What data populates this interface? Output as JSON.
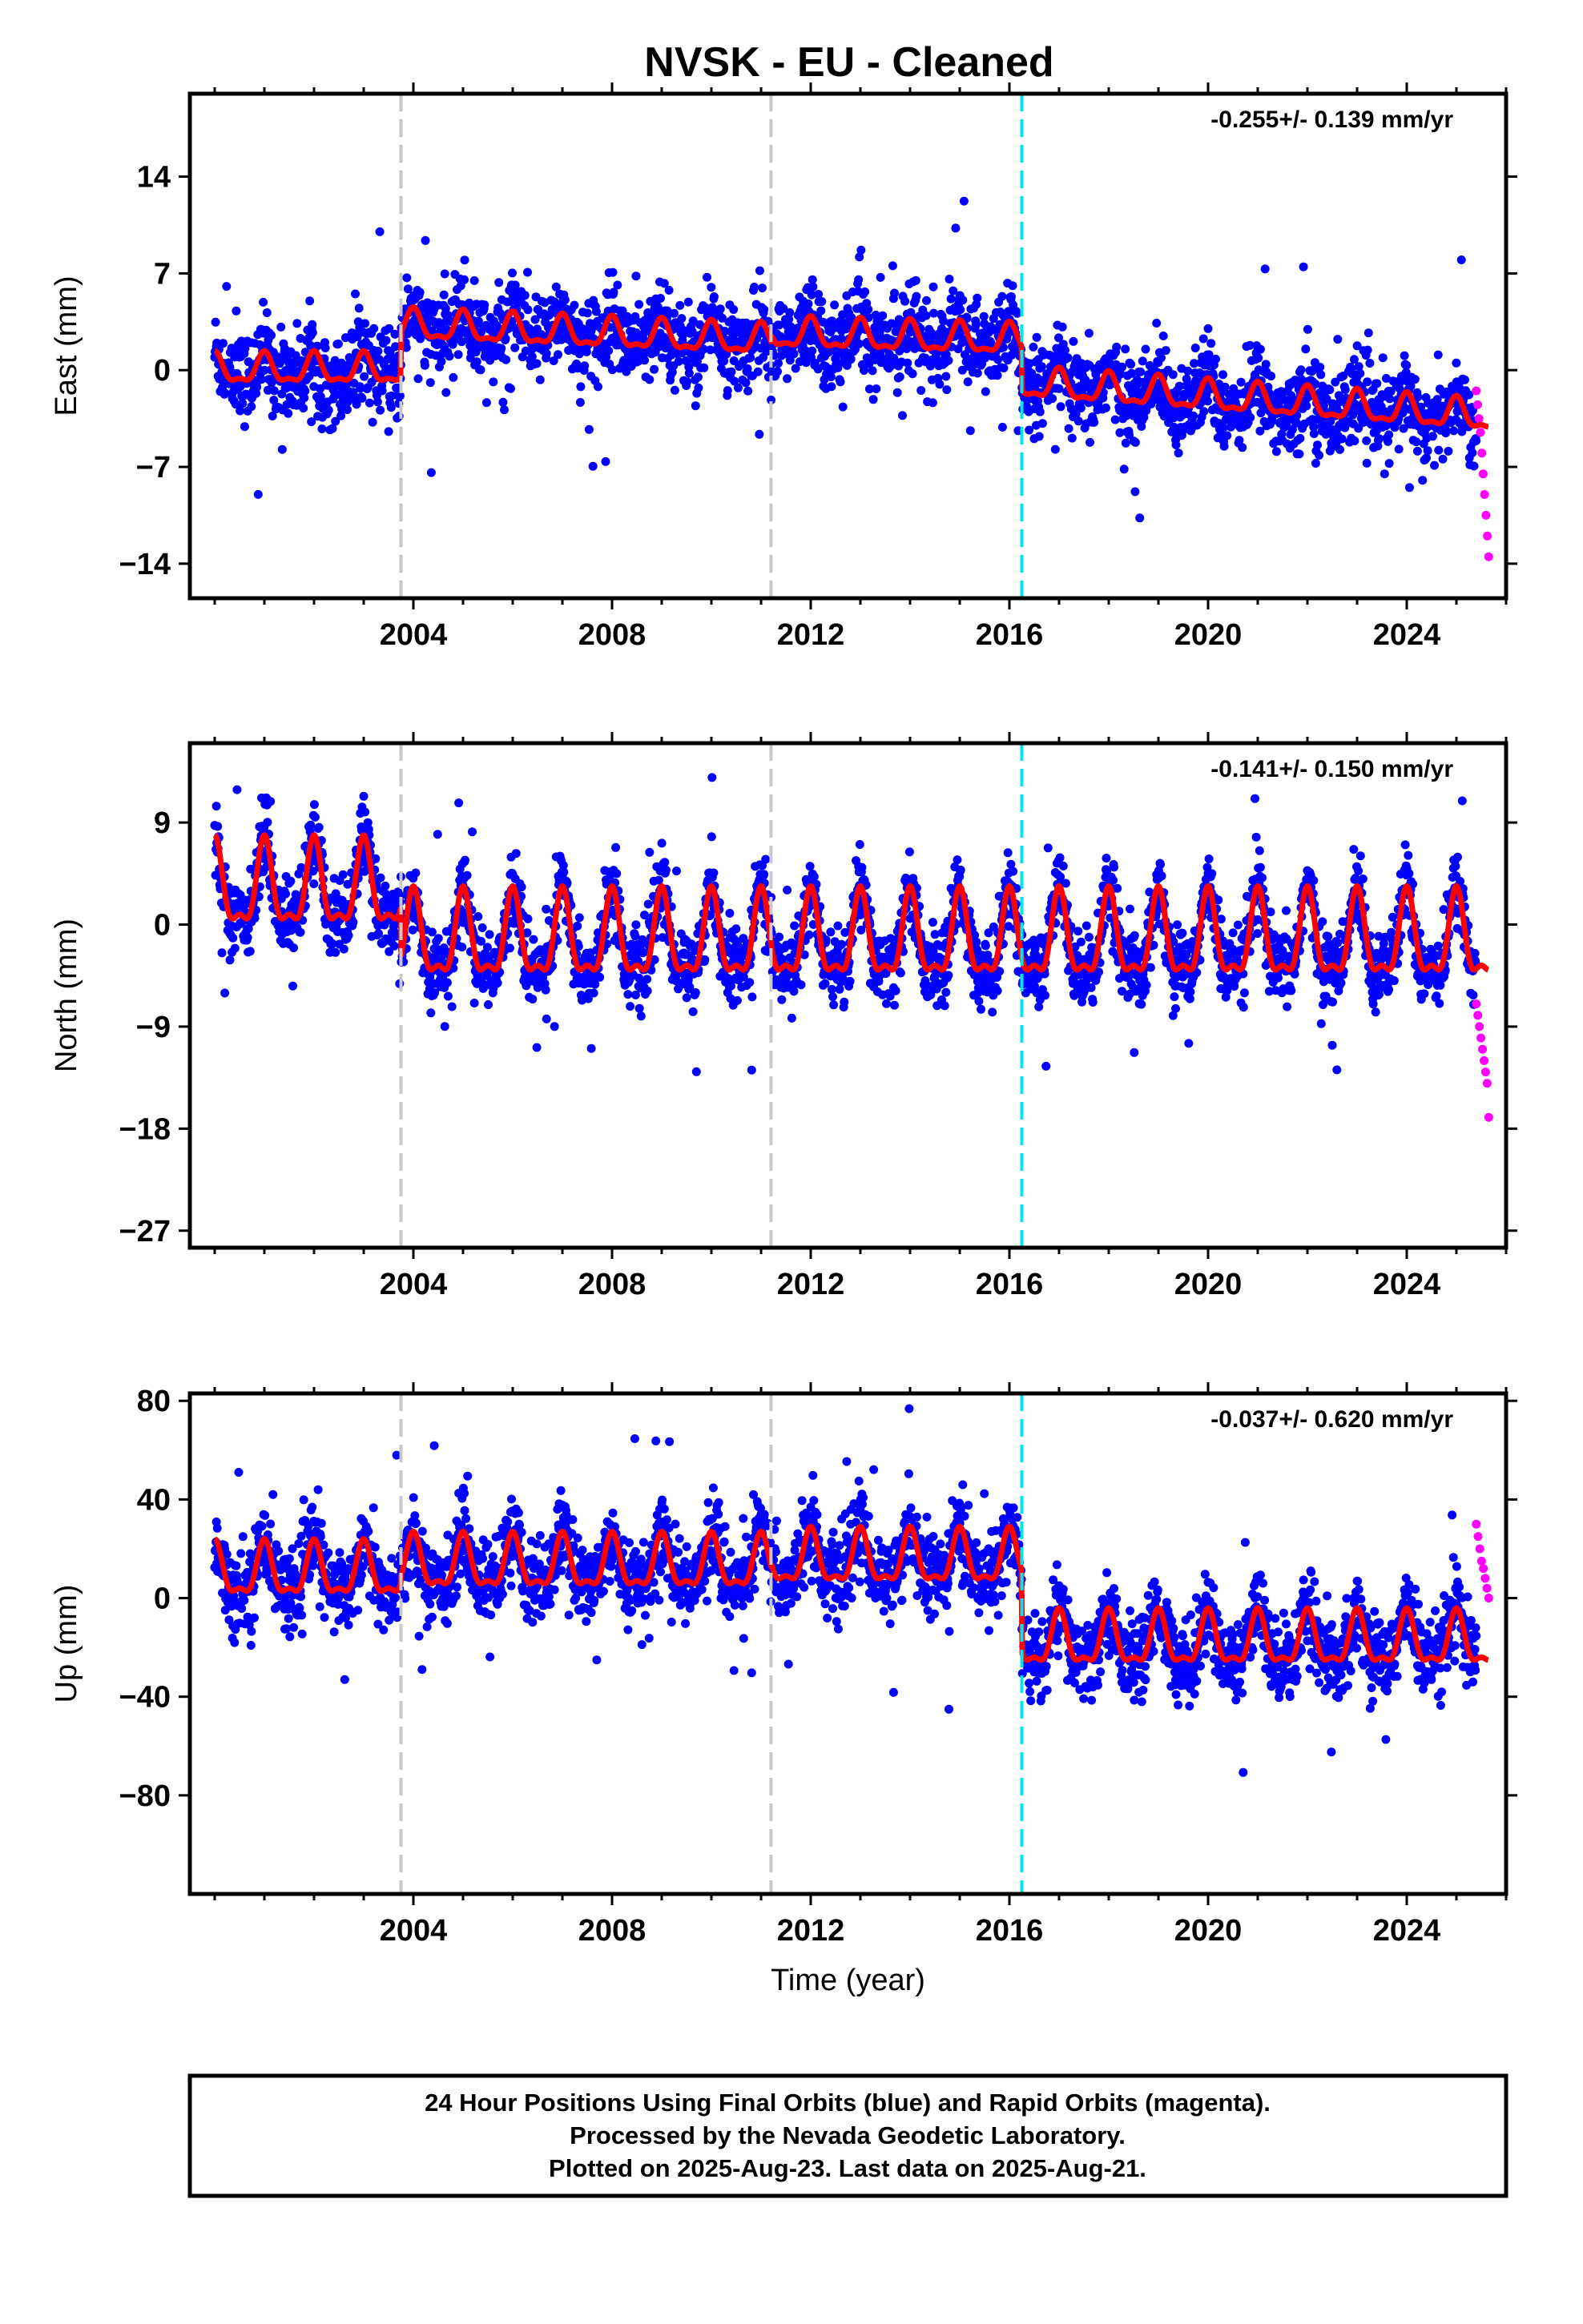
{
  "title": "NVSK  - EU - Cleaned",
  "footer": {
    "line1": "24 Hour Positions Using Final Orbits (blue) and Rapid Orbits (magenta).",
    "line2": "Processed by the Nevada Geodetic Laboratory.",
    "line3": "Plotted on 2025-Aug-23. Last data on 2025-Aug-21."
  },
  "colors": {
    "final_points": "#0000ff",
    "rapid_points": "#ff00ff",
    "model": "#ff0000",
    "equipment_change_line": "#c8c8c8",
    "other_offset_line": "#00e5ee"
  },
  "chart_data": [
    {
      "type": "scatter",
      "panel": "east",
      "ylabel": "East (mm)",
      "xlabel": "",
      "rate": "-0.255+/- 0.139 mm/yr",
      "xlim": [
        1999.5,
        2026.0
      ],
      "ylim": [
        -16.5,
        20.0
      ],
      "yticks": [
        14,
        7,
        0,
        -7,
        -14
      ],
      "ytick_labels": [
        "14",
        "7",
        "0",
        "−7",
        "−14"
      ],
      "xticks": [
        2004,
        2008,
        2012,
        2016,
        2020,
        2024
      ],
      "xtick_labels": [
        "2004",
        "2008",
        "2012",
        "2016",
        "2020",
        "2024"
      ],
      "gray_dashed_lines": [
        2003.75,
        2011.2
      ],
      "cyan_dashed_lines": [
        2016.25
      ],
      "model_segments": [
        {
          "start": 2000.0,
          "end": 2003.75,
          "offset": 0.0,
          "rate": 0.0,
          "amplitude": 1.0
        },
        {
          "start": 2003.75,
          "end": 2011.2,
          "offset": 3.2,
          "rate": -0.15,
          "amplitude": 1.0
        },
        {
          "start": 2011.2,
          "end": 2016.25,
          "offset": 2.6,
          "rate": -0.1,
          "amplitude": 1.0
        },
        {
          "start": 2016.25,
          "end": 2025.65,
          "offset": -1.0,
          "rate": -0.255,
          "amplitude": 1.0
        }
      ],
      "final_series": {
        "start": 2000.0,
        "end": 2025.4,
        "noise": 1.5
      },
      "rapid_series": {
        "start": 2025.4,
        "end": 2025.65,
        "values": [
          -1.5,
          -2.5,
          -3.5,
          -4.5,
          -6,
          -7.5,
          -9,
          -10.5,
          -12,
          -13.5
        ]
      }
    },
    {
      "type": "scatter",
      "panel": "north",
      "ylabel": "North (mm)",
      "xlabel": "",
      "rate": "-0.141+/- 0.150 mm/yr",
      "xlim": [
        1999.5,
        2026.0
      ],
      "ylim": [
        -28.5,
        16.0
      ],
      "yticks": [
        9,
        0,
        -9,
        -18,
        -27
      ],
      "ytick_labels": [
        "9",
        "0",
        "−9",
        "−18",
        "−27"
      ],
      "xticks": [
        2004,
        2008,
        2012,
        2016,
        2020,
        2024
      ],
      "xtick_labels": [
        "2004",
        "2008",
        "2012",
        "2016",
        "2020",
        "2024"
      ],
      "gray_dashed_lines": [
        2003.75,
        2011.2
      ],
      "cyan_dashed_lines": [
        2016.25
      ],
      "model_segments": [
        {
          "start": 2000.0,
          "end": 2003.75,
          "offset": 3.0,
          "rate": 0.0,
          "amplitude": 3.5
        },
        {
          "start": 2003.75,
          "end": 2011.2,
          "offset": -1.5,
          "rate": 0.0,
          "amplitude": 3.5
        },
        {
          "start": 2011.2,
          "end": 2016.25,
          "offset": -1.5,
          "rate": 0.0,
          "amplitude": 3.5
        },
        {
          "start": 2016.25,
          "end": 2025.65,
          "offset": -1.5,
          "rate": 0.0,
          "amplitude": 3.5
        }
      ],
      "final_series": {
        "start": 2000.0,
        "end": 2025.4,
        "noise": 1.6
      },
      "rapid_series": {
        "start": 2025.4,
        "end": 2025.65,
        "values": [
          -7,
          -8,
          -9,
          -10,
          -11,
          -12,
          -13,
          -14,
          -17
        ]
      }
    },
    {
      "type": "scatter",
      "panel": "up",
      "ylabel": "Up (mm)",
      "xlabel": "Time (year)",
      "rate": "-0.037+/- 0.620 mm/yr",
      "xlim": [
        1999.5,
        2026.0
      ],
      "ylim": [
        -120.0,
        83.0
      ],
      "yticks": [
        80,
        40,
        0,
        -40,
        -80
      ],
      "ytick_labels": [
        "80",
        "40",
        "0",
        "−40",
        "−80"
      ],
      "xticks": [
        2004,
        2008,
        2012,
        2016,
        2020,
        2024
      ],
      "xtick_labels": [
        "2004",
        "2008",
        "2012",
        "2016",
        "2020",
        "2024"
      ],
      "gray_dashed_lines": [
        2003.75,
        2011.2
      ],
      "cyan_dashed_lines": [
        2016.25
      ],
      "model_segments": [
        {
          "start": 2000.0,
          "end": 2003.75,
          "offset": 10.0,
          "rate": 0.0,
          "amplitude": 10.0
        },
        {
          "start": 2003.75,
          "end": 2011.2,
          "offset": 13.0,
          "rate": 0.0,
          "amplitude": 10.0
        },
        {
          "start": 2011.2,
          "end": 2016.25,
          "offset": 15.0,
          "rate": 0.0,
          "amplitude": 10.0
        },
        {
          "start": 2016.25,
          "end": 2025.65,
          "offset": -18.0,
          "rate": 0.0,
          "amplitude": 10.0
        }
      ],
      "final_series": {
        "start": 2000.0,
        "end": 2025.4,
        "noise": 8.0
      },
      "rapid_series": {
        "start": 2025.4,
        "end": 2025.65,
        "values": [
          30,
          25,
          20,
          15,
          12,
          8,
          4,
          0
        ]
      }
    }
  ]
}
